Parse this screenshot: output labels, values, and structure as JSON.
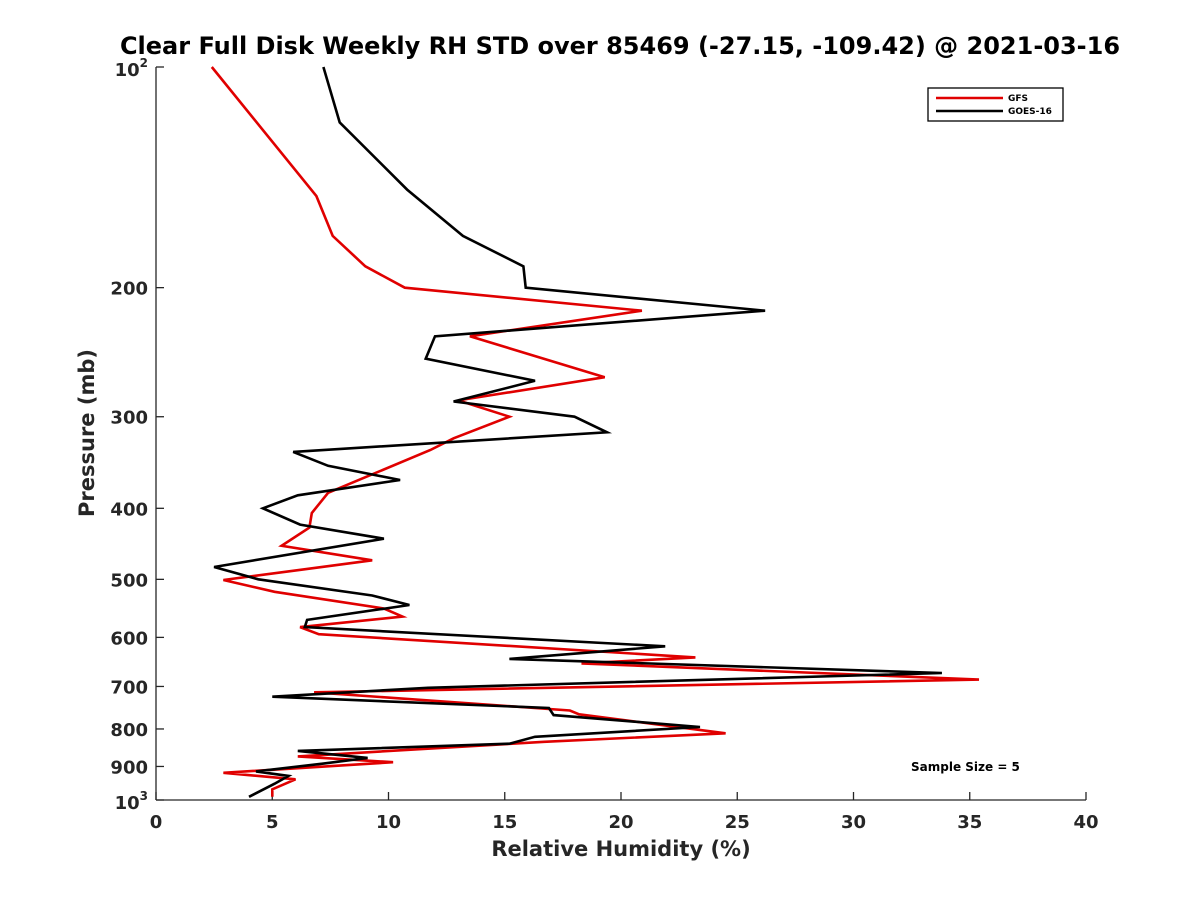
{
  "chart_data": {
    "type": "line",
    "title": "Clear Full Disk Weekly RH STD over 85469 (-27.15, -109.42) @ 2021-03-16",
    "xlabel": "Relative Humidity (%)",
    "ylabel": "Pressure (mb)",
    "xlim": [
      0,
      40
    ],
    "ylim": [
      100,
      1000
    ],
    "y_scale": "log",
    "y_reversed": true,
    "xticks": [
      "0",
      "5",
      "10",
      "15",
      "20",
      "25",
      "30",
      "35",
      "40"
    ],
    "yticks": [
      {
        "value": 100,
        "base": "10",
        "exp": "2"
      },
      {
        "value": 200,
        "label": "200"
      },
      {
        "value": 300,
        "label": "300"
      },
      {
        "value": 400,
        "label": "400"
      },
      {
        "value": 500,
        "label": "500"
      },
      {
        "value": 600,
        "label": "600"
      },
      {
        "value": 700,
        "label": "700"
      },
      {
        "value": 800,
        "label": "800"
      },
      {
        "value": 900,
        "label": "900"
      },
      {
        "value": 1000,
        "base": "10",
        "exp": "3"
      }
    ],
    "grid": false,
    "legend_position": "top-right",
    "annotation": "Sample Size = 5",
    "series": [
      {
        "name": "GFS",
        "color": "#e00000",
        "points": [
          [
            2.4,
            100
          ],
          [
            6.9,
            150
          ],
          [
            7.6,
            170
          ],
          [
            9.0,
            187
          ],
          [
            10.7,
            200
          ],
          [
            20.9,
            215
          ],
          [
            13.5,
            233
          ],
          [
            19.3,
            265
          ],
          [
            13.0,
            285
          ],
          [
            15.2,
            300
          ],
          [
            12.8,
            321
          ],
          [
            11.8,
            333
          ],
          [
            8.8,
            365
          ],
          [
            7.4,
            381
          ],
          [
            6.7,
            406
          ],
          [
            6.6,
            425
          ],
          [
            5.4,
            450
          ],
          [
            9.3,
            471
          ],
          [
            6.3,
            485
          ],
          [
            2.9,
            501
          ],
          [
            5.1,
            520
          ],
          [
            9.8,
            548
          ],
          [
            10.6,
            562
          ],
          [
            6.2,
            581
          ],
          [
            7.0,
            594
          ],
          [
            23.2,
            639
          ],
          [
            18.3,
            651
          ],
          [
            35.4,
            685
          ],
          [
            6.8,
            713
          ],
          [
            17.8,
            755
          ],
          [
            18.2,
            764
          ],
          [
            24.5,
            811
          ],
          [
            16.7,
            833
          ],
          [
            6.1,
            872
          ],
          [
            10.2,
            888
          ],
          [
            2.9,
            918
          ],
          [
            6.0,
            937
          ],
          [
            5.0,
            967
          ],
          [
            5.0,
            990
          ]
        ]
      },
      {
        "name": "GOES-16",
        "color": "#000000",
        "points": [
          [
            7.2,
            100
          ],
          [
            7.9,
            119
          ],
          [
            10.8,
            147
          ],
          [
            13.2,
            170
          ],
          [
            15.8,
            187
          ],
          [
            15.9,
            200
          ],
          [
            26.2,
            215
          ],
          [
            12.0,
            233
          ],
          [
            11.6,
            250
          ],
          [
            16.3,
            268
          ],
          [
            12.8,
            286
          ],
          [
            18.0,
            300
          ],
          [
            19.4,
            315
          ],
          [
            5.9,
            335
          ],
          [
            7.4,
            350
          ],
          [
            10.5,
            366
          ],
          [
            6.1,
            384
          ],
          [
            4.6,
            400
          ],
          [
            6.2,
            421
          ],
          [
            9.8,
            440
          ],
          [
            2.5,
            481
          ],
          [
            4.4,
            500
          ],
          [
            9.3,
            526
          ],
          [
            10.9,
            542
          ],
          [
            6.5,
            568
          ],
          [
            6.4,
            581
          ],
          [
            21.9,
            617
          ],
          [
            15.2,
            642
          ],
          [
            33.8,
            671
          ],
          [
            11.7,
            703
          ],
          [
            5.0,
            723
          ],
          [
            16.9,
            749
          ],
          [
            17.1,
            766
          ],
          [
            23.4,
            795
          ],
          [
            16.3,
            820
          ],
          [
            15.2,
            838
          ],
          [
            6.1,
            857
          ],
          [
            9.1,
            876
          ],
          [
            7.2,
            892
          ],
          [
            4.3,
            914
          ],
          [
            5.7,
            927
          ],
          [
            5.1,
            950
          ],
          [
            4.0,
            990
          ]
        ]
      }
    ]
  }
}
